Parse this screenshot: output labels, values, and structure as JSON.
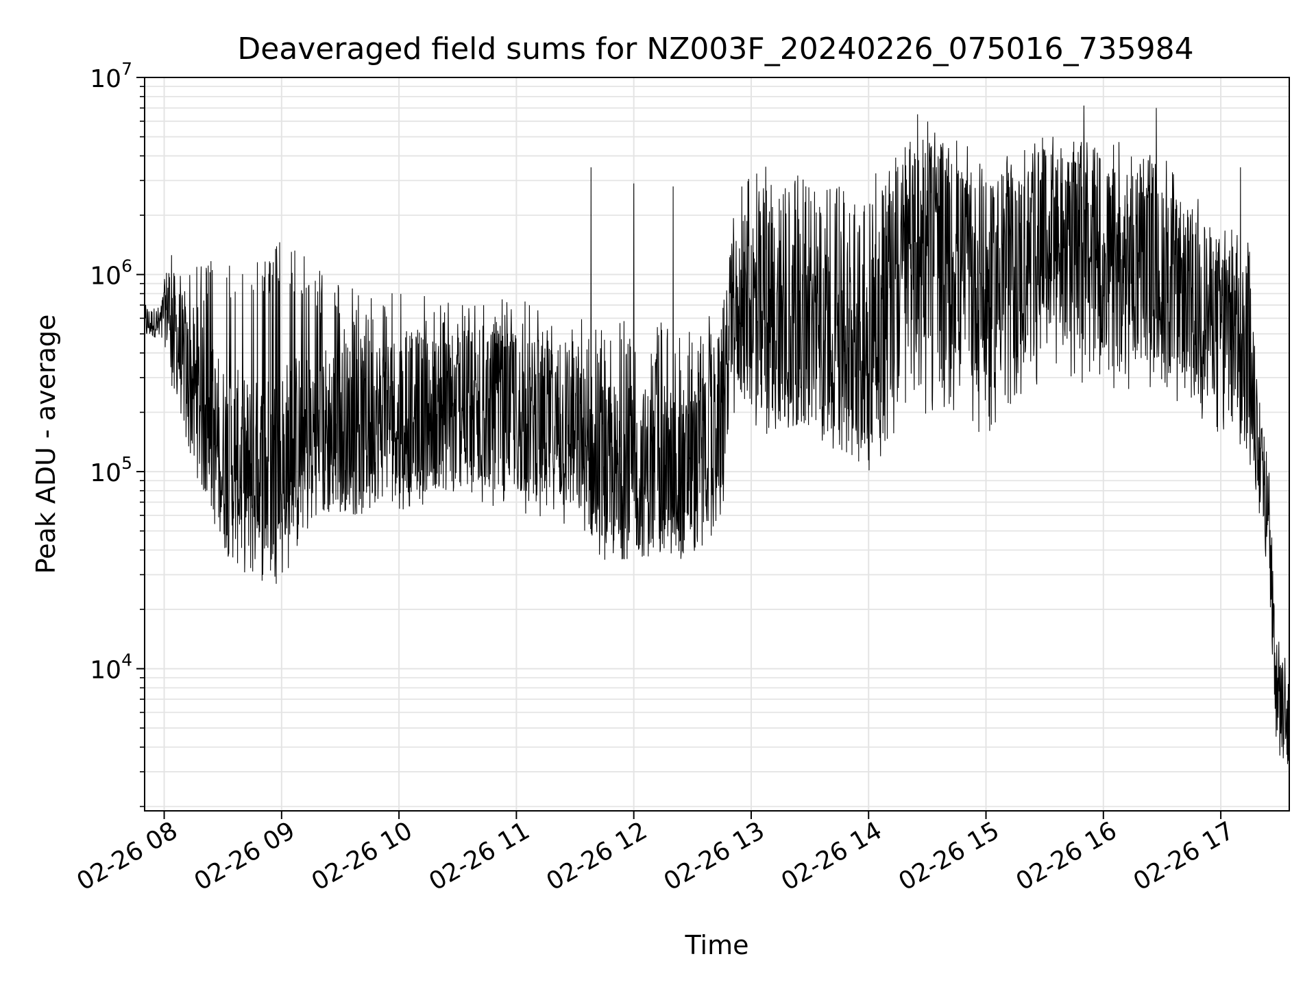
{
  "chart_data": {
    "type": "line",
    "title": "Deaveraged field sums for NZ003F_20240226_075016_735984",
    "xlabel": "Time",
    "ylabel": "Peak ADU - average",
    "yscale": "log",
    "xlim": [
      "02-26 07:50",
      "02-26 17:35"
    ],
    "ylim": [
      1900,
      10000000
    ],
    "grid": true,
    "line_color": "#000000",
    "x_ticks": [
      {
        "t": "08:00",
        "label": "02-26 08"
      },
      {
        "t": "09:00",
        "label": "02-26 09"
      },
      {
        "t": "10:00",
        "label": "02-26 10"
      },
      {
        "t": "11:00",
        "label": "02-26 11"
      },
      {
        "t": "12:00",
        "label": "02-26 12"
      },
      {
        "t": "13:00",
        "label": "02-26 13"
      },
      {
        "t": "14:00",
        "label": "02-26 14"
      },
      {
        "t": "15:00",
        "label": "02-26 15"
      },
      {
        "t": "16:00",
        "label": "02-26 16"
      },
      {
        "t": "17:00",
        "label": "02-26 17"
      }
    ],
    "y_ticks": [
      {
        "value": 10000,
        "base": "10",
        "exp": "4"
      },
      {
        "value": 100000,
        "base": "10",
        "exp": "5"
      },
      {
        "value": 1000000,
        "base": "10",
        "exp": "6"
      },
      {
        "value": 10000000,
        "base": "10",
        "exp": "7"
      }
    ],
    "series": [
      {
        "envelope": [
          {
            "t": "07:50",
            "low": 420000,
            "mid": 560000,
            "high": 700000
          },
          {
            "t": "07:58",
            "low": 450000,
            "mid": 580000,
            "high": 720000
          },
          {
            "t": "08:02",
            "low": 300000,
            "mid": 700000,
            "high": 1400000
          },
          {
            "t": "08:10",
            "low": 150000,
            "mid": 350000,
            "high": 1200000
          },
          {
            "t": "08:20",
            "low": 80000,
            "mid": 200000,
            "high": 1200000
          },
          {
            "t": "08:30",
            "low": 60000,
            "mid": 120000,
            "high": 1200000
          },
          {
            "t": "08:45",
            "low": 50000,
            "mid": 90000,
            "high": 1200000
          },
          {
            "t": "09:00",
            "low": 45000,
            "mid": 100000,
            "high": 1500000
          },
          {
            "t": "09:15",
            "low": 60000,
            "mid": 150000,
            "high": 1200000
          },
          {
            "t": "09:30",
            "low": 60000,
            "mid": 170000,
            "high": 900000
          },
          {
            "t": "10:00",
            "low": 60000,
            "mid": 200000,
            "high": 800000
          },
          {
            "t": "10:30",
            "low": 70000,
            "mid": 200000,
            "high": 750000
          },
          {
            "t": "11:00",
            "low": 60000,
            "mid": 200000,
            "high": 750000
          },
          {
            "t": "11:30",
            "low": 50000,
            "mid": 150000,
            "high": 650000
          },
          {
            "t": "11:45",
            "low": 35000,
            "mid": 100000,
            "high": 600000
          },
          {
            "t": "12:00",
            "low": 40000,
            "mid": 100000,
            "high": 600000
          },
          {
            "t": "12:30",
            "low": 35000,
            "mid": 100000,
            "high": 550000
          },
          {
            "t": "12:45",
            "low": 50000,
            "mid": 200000,
            "high": 700000
          },
          {
            "t": "12:50",
            "low": 200000,
            "mid": 600000,
            "high": 2000000
          },
          {
            "t": "13:00",
            "low": 150000,
            "mid": 700000,
            "high": 4000000
          },
          {
            "t": "13:30",
            "low": 150000,
            "mid": 500000,
            "high": 3000000
          },
          {
            "t": "14:00",
            "low": 100000,
            "mid": 500000,
            "high": 3000000
          },
          {
            "t": "14:30",
            "low": 200000,
            "mid": 1500000,
            "high": 6000000
          },
          {
            "t": "15:00",
            "low": 150000,
            "mid": 800000,
            "high": 4000000
          },
          {
            "t": "15:30",
            "low": 300000,
            "mid": 1500000,
            "high": 5000000
          },
          {
            "t": "16:00",
            "low": 250000,
            "mid": 1200000,
            "high": 5000000
          },
          {
            "t": "16:30",
            "low": 250000,
            "mid": 1000000,
            "high": 4000000
          },
          {
            "t": "17:00",
            "low": 150000,
            "mid": 600000,
            "high": 2000000
          },
          {
            "t": "17:15",
            "low": 100000,
            "mid": 400000,
            "high": 1500000
          },
          {
            "t": "17:20",
            "low": 50000,
            "mid": 120000,
            "high": 250000
          },
          {
            "t": "17:25",
            "low": 20000,
            "mid": 50000,
            "high": 100000
          },
          {
            "t": "17:28",
            "low": 3000,
            "mid": 8000,
            "high": 15000
          },
          {
            "t": "17:35",
            "low": 3000,
            "mid": 7000,
            "high": 12000
          }
        ],
        "spikes": [
          {
            "t": "11:38",
            "value": 3500000
          },
          {
            "t": "12:00",
            "value": 2900000
          },
          {
            "t": "12:20",
            "value": 2800000
          },
          {
            "t": "14:25",
            "value": 6500000
          },
          {
            "t": "15:50",
            "value": 7200000
          },
          {
            "t": "16:27",
            "value": 7000000
          },
          {
            "t": "17:10",
            "value": 3500000
          }
        ]
      }
    ]
  }
}
